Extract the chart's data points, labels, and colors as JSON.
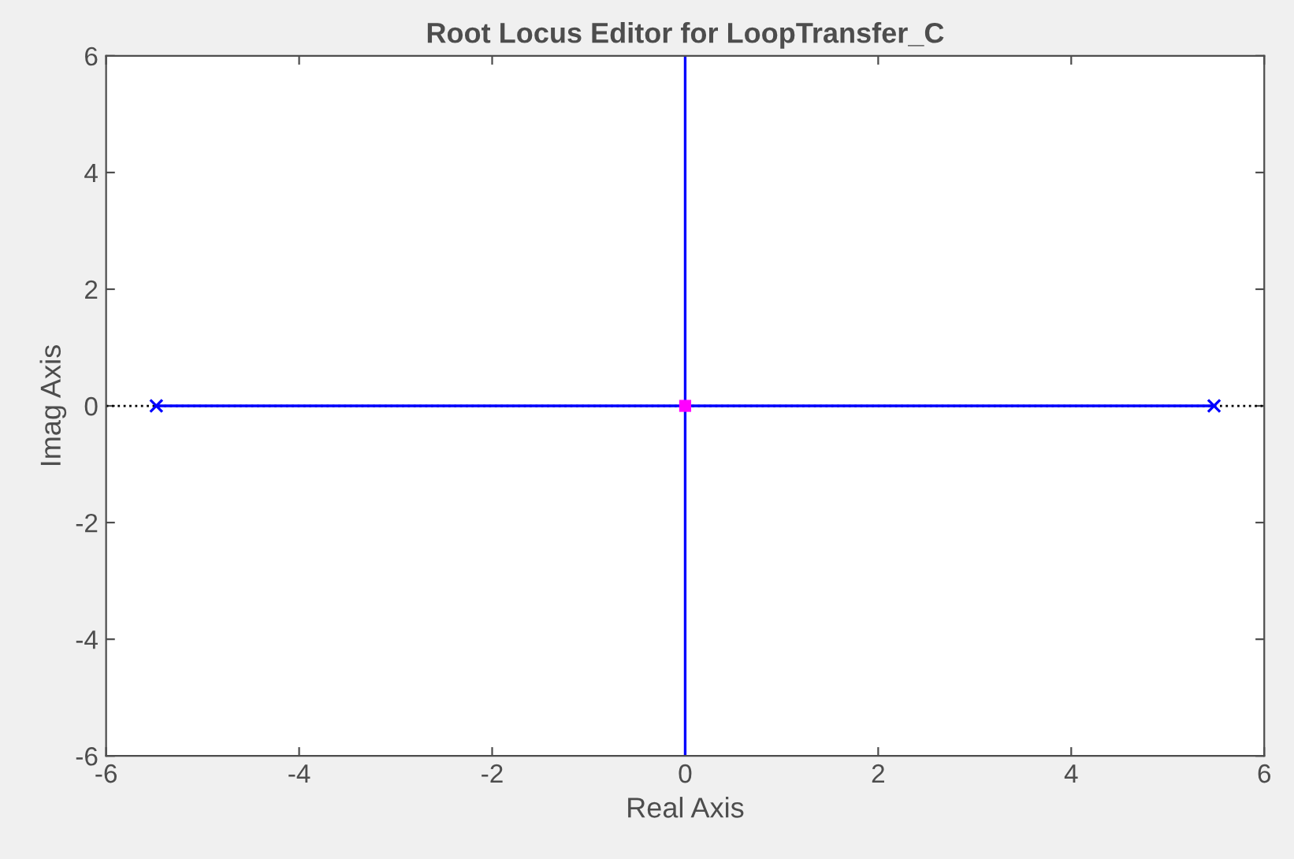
{
  "chart_data": {
    "type": "line",
    "title": "Root Locus Editor for LoopTransfer_C",
    "xlabel": "Real Axis",
    "ylabel": "Imag Axis",
    "xlim": [
      -6,
      6
    ],
    "ylim": [
      -6,
      6
    ],
    "xticks": [
      -6,
      -4,
      -2,
      0,
      2,
      4,
      6
    ],
    "yticks": [
      -6,
      -4,
      -2,
      0,
      2,
      4,
      6
    ],
    "grid": false,
    "legend": false,
    "ref_lines": [
      {
        "axis": "y",
        "value": 0,
        "color": "#000000",
        "line_style": "dotted"
      }
    ],
    "series": [
      {
        "color": "#0000ff",
        "x": [
          -5.48,
          5.48
        ],
        "values": [
          0,
          0
        ],
        "marker": "none",
        "line_style": "solid"
      },
      {
        "color": "#0000ff",
        "x": [
          0,
          0
        ],
        "values": [
          -6,
          6
        ],
        "marker": "none",
        "line_style": "solid"
      },
      {
        "type": "scatter",
        "color": "#0000ff",
        "x": [
          -5.48,
          5.48
        ],
        "values": [
          0,
          0
        ],
        "marker": "cross"
      },
      {
        "type": "scatter",
        "color": "#ff00ff",
        "x": [
          0
        ],
        "values": [
          0
        ],
        "marker": "square"
      }
    ]
  }
}
